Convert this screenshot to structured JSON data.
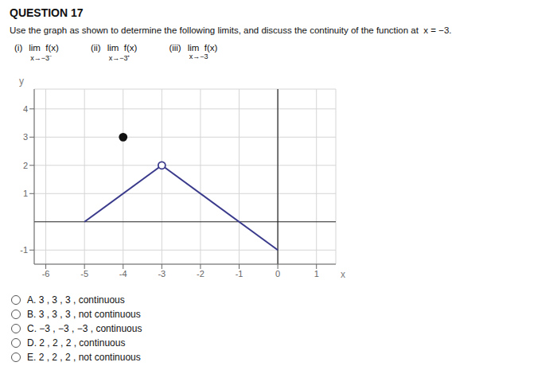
{
  "chart_data": {
    "type": "line",
    "title": "QUESTION 17",
    "subtitle": "Use the graph as shown to determine the following limits, and discuss the continuity of the function at  x = −3.",
    "annotations": {
      "limits": [
        {
          "label": "(i)",
          "text": "lim  f(x)",
          "under": "x→−3⁻"
        },
        {
          "label": "(ii)",
          "text": "lim  f(x)",
          "under": "x→−3⁺"
        },
        {
          "label": "(iii)",
          "text": "lim  f(x)",
          "under": "x→−3"
        }
      ],
      "choices": [
        "A. 3 , 3 , 3 , continuous",
        "B. 3 , 3 , 3 , not continuous",
        "C. −3 , −3 , −3 , continuous",
        "D. 2 , 2 , 2 , continuous",
        "E. 2 , 2 , 2 , not continuous"
      ]
    },
    "x_label": "x",
    "y_label": "y",
    "xlim": [
      -6.3,
      1.5
    ],
    "ylim": [
      -1.5,
      4.7
    ],
    "xticks": [
      -6,
      -5,
      -4,
      -3,
      -2,
      -1,
      0,
      1
    ],
    "yticks": [
      -1,
      1,
      2,
      3,
      4
    ],
    "grid": true,
    "series": [
      {
        "type": "line",
        "color": "#3a3a8c",
        "x": [
          -5,
          -3
        ],
        "values": [
          0,
          2
        ]
      },
      {
        "type": "line",
        "color": "#3a3a8c",
        "x": [
          -3,
          0
        ],
        "values": [
          2,
          -1
        ]
      },
      {
        "type": "scatter",
        "marker": "open_circle",
        "color": "#3a3a8c",
        "x": [
          -3
        ],
        "values": [
          2
        ]
      },
      {
        "type": "scatter",
        "marker": "filled_circle",
        "color": "#111111",
        "x": [
          -4
        ],
        "values": [
          3
        ]
      }
    ]
  }
}
